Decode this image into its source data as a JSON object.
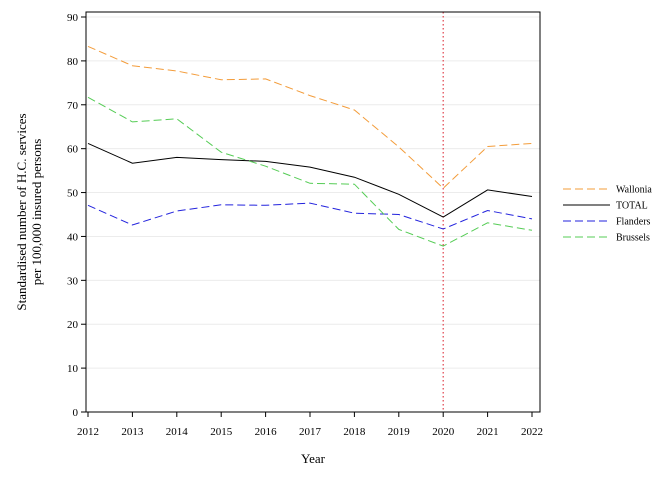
{
  "chart_data": {
    "type": "line",
    "title": "",
    "xlabel": "Year",
    "ylabel_lines": [
      "Standardised number of H.C. services",
      "per 100,000 insured persons"
    ],
    "x": [
      2012,
      2013,
      2014,
      2015,
      2016,
      2017,
      2018,
      2019,
      2020,
      2021,
      2022
    ],
    "xlim": [
      2012,
      2022
    ],
    "ylim": [
      0,
      90
    ],
    "yticks": [
      0,
      10,
      20,
      30,
      40,
      50,
      60,
      70,
      80,
      90
    ],
    "grid": "horizontal, light",
    "legend_position": "right",
    "reference_line": {
      "x": 2020,
      "color": "#e0404a",
      "style": "dotted"
    },
    "series": [
      {
        "name": "Wallonia",
        "color": "#f39c3a",
        "dash": "dashed",
        "values": [
          83.3,
          78.9,
          77.7,
          75.7,
          75.9,
          72.1,
          68.8,
          60.4,
          51.0,
          60.5,
          61.2
        ]
      },
      {
        "name": "TOTAL",
        "color": "#000000",
        "dash": "solid",
        "values": [
          61.2,
          56.7,
          58.0,
          57.5,
          57.1,
          55.8,
          53.5,
          49.6,
          44.4,
          50.6,
          49.1
        ]
      },
      {
        "name": "Flanders",
        "color": "#2222dd",
        "dash": "dashed",
        "values": [
          47.1,
          42.6,
          45.8,
          47.2,
          47.1,
          47.6,
          45.3,
          45.0,
          41.7,
          45.9,
          44.0
        ]
      },
      {
        "name": "Brussels",
        "color": "#55cc55",
        "dash": "dashed",
        "values": [
          71.7,
          66.1,
          66.8,
          59.2,
          56.0,
          52.1,
          51.9,
          41.6,
          37.8,
          43.1,
          41.4
        ]
      }
    ]
  }
}
